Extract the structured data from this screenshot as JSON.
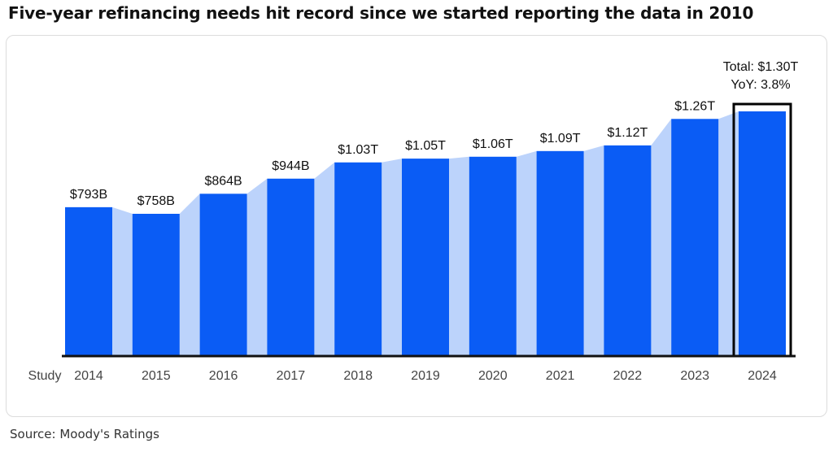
{
  "title": "Five-year refinancing needs hit record since we started reporting the data in 2010",
  "source": "Source: Moody's Ratings",
  "chart_data": {
    "type": "bar",
    "title": "Five-year refinancing needs hit record since we started reporting the data in 2010",
    "xlabel": "Study",
    "ylabel": "",
    "categories": [
      "2014",
      "2015",
      "2016",
      "2017",
      "2018",
      "2019",
      "2020",
      "2021",
      "2022",
      "2023",
      "2024"
    ],
    "values": [
      793,
      758,
      864,
      944,
      1030,
      1050,
      1060,
      1090,
      1120,
      1260,
      1300
    ],
    "units": "billions USD",
    "data_labels": [
      "$793B",
      "$758B",
      "$864B",
      "$944B",
      "$1.03T",
      "$1.05T",
      "$1.06T",
      "$1.09T",
      "$1.12T",
      "$1.26T",
      ""
    ],
    "highlight": {
      "category": "2024",
      "lines": [
        "Total: $1.30T",
        "YoY: 3.8%"
      ]
    },
    "ylim": [
      0,
      1300
    ],
    "grid": false,
    "legend": "none",
    "colors": {
      "bar": "#0a5cf5",
      "connector": "#bcd3fb",
      "axis": "#111111",
      "highlight_border": "#000000"
    }
  }
}
